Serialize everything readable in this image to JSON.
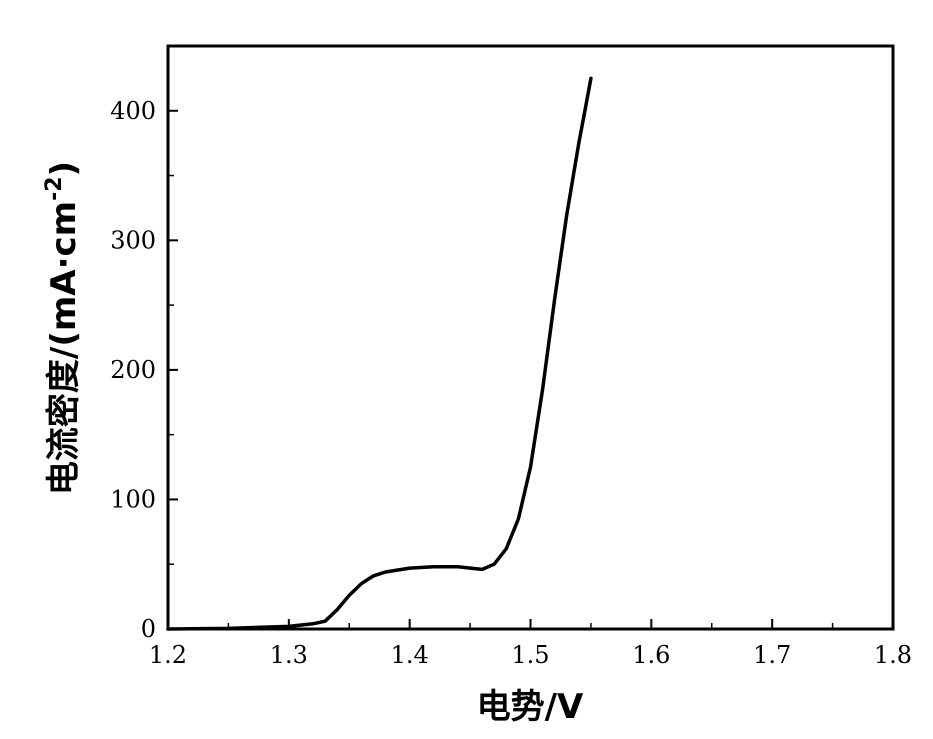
{
  "chart_data": {
    "type": "line",
    "xlabel": "电势/V",
    "ylabel_main": "电流密度/(mA·cm",
    "ylabel_sup": "-2",
    "ylabel_close": ")",
    "xlim": [
      1.2,
      1.8
    ],
    "ylim": [
      0,
      450
    ],
    "xticks": [
      1.2,
      1.3,
      1.4,
      1.5,
      1.6,
      1.7,
      1.8
    ],
    "xtick_labels": [
      "1.2",
      "1.3",
      "1.4",
      "1.5",
      "1.6",
      "1.7",
      "1.8"
    ],
    "yticks": [
      0,
      100,
      200,
      300,
      400
    ],
    "ytick_labels": [
      "0",
      "100",
      "200",
      "300",
      "400"
    ],
    "grid": false,
    "line_color": "#000000",
    "series": [
      {
        "x": [
          1.2,
          1.25,
          1.3,
          1.32,
          1.33,
          1.34,
          1.35,
          1.36,
          1.37,
          1.38,
          1.4,
          1.42,
          1.44,
          1.45,
          1.46,
          1.47,
          1.48,
          1.49,
          1.5,
          1.51,
          1.52,
          1.53,
          1.54,
          1.545,
          1.55
        ],
        "y": [
          0,
          0.5,
          2,
          4,
          6,
          15,
          26,
          35,
          41,
          44,
          47,
          48,
          48,
          47,
          46,
          50,
          62,
          85,
          125,
          185,
          255,
          320,
          375,
          400,
          425
        ]
      }
    ]
  }
}
